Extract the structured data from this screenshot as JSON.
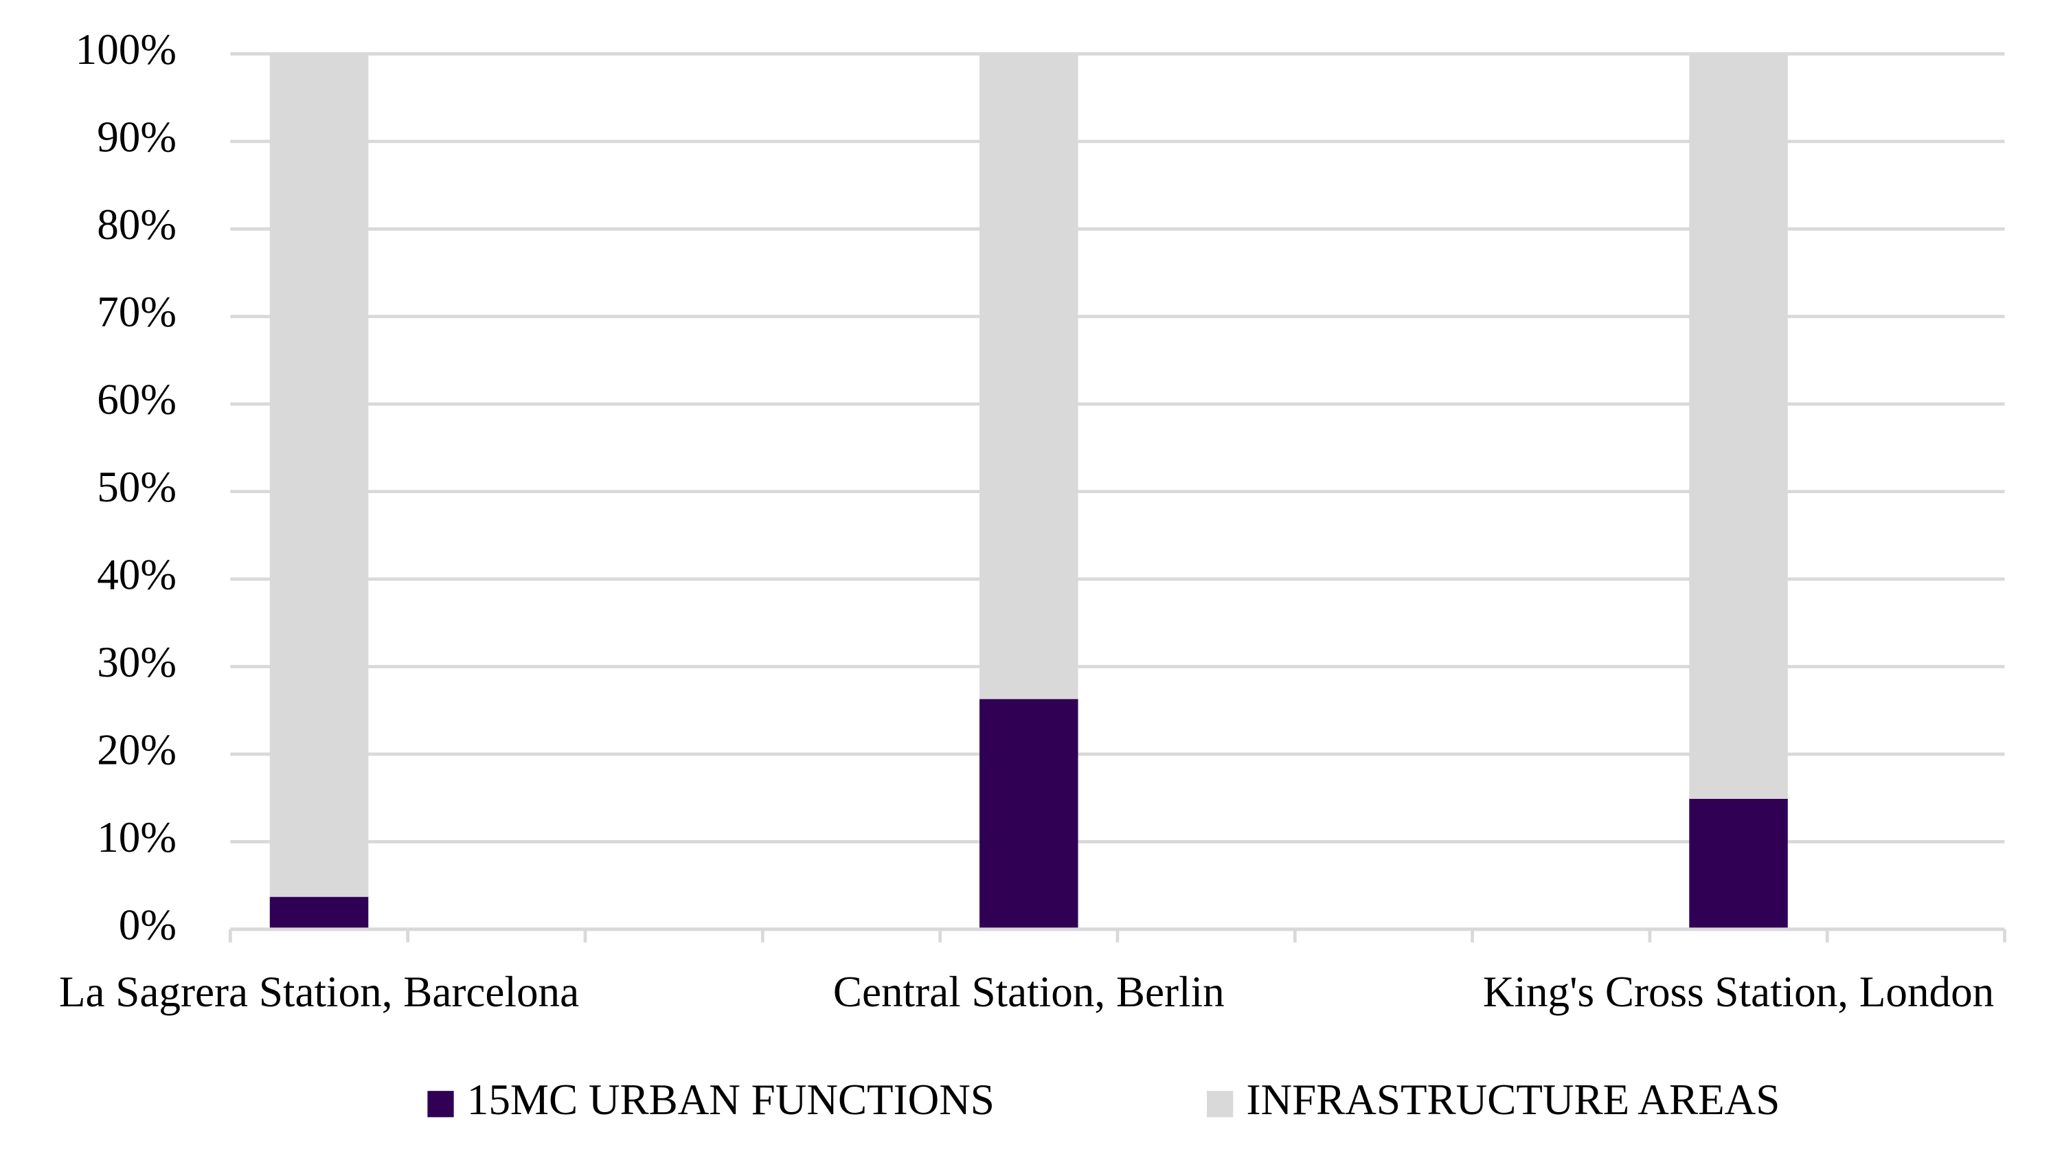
{
  "chart_data": {
    "type": "stacked_bar",
    "categories": [
      "La Sagrera Station, Barcelona",
      null,
      null,
      null,
      "Central Station, Berlin",
      null,
      null,
      null,
      "King's Cross Station, London",
      null
    ],
    "series": [
      {
        "name": "15MC URBAN FUNCTIONS",
        "color": "#300055",
        "values": [
          3.7,
          null,
          null,
          null,
          26.3,
          null,
          null,
          null,
          14.9,
          null
        ]
      },
      {
        "name": "INFRASTRUCTURE AREAS",
        "color": "#d9d9d9",
        "values": [
          96.3,
          null,
          null,
          null,
          73.7,
          null,
          null,
          null,
          85.1,
          null
        ]
      }
    ],
    "ylim": [
      0,
      100
    ],
    "yticks": [
      {
        "value": 0,
        "label": "0%"
      },
      {
        "value": 10,
        "label": "10%"
      },
      {
        "value": 20,
        "label": "20%"
      },
      {
        "value": 30,
        "label": "30%"
      },
      {
        "value": 40,
        "label": "40%"
      },
      {
        "value": 50,
        "label": "50%"
      },
      {
        "value": 60,
        "label": "60%"
      },
      {
        "value": 70,
        "label": "70%"
      },
      {
        "value": 80,
        "label": "80%"
      },
      {
        "value": 90,
        "label": "90%"
      },
      {
        "value": 100,
        "label": "100%"
      }
    ],
    "grid": true,
    "legend": "bottom"
  }
}
